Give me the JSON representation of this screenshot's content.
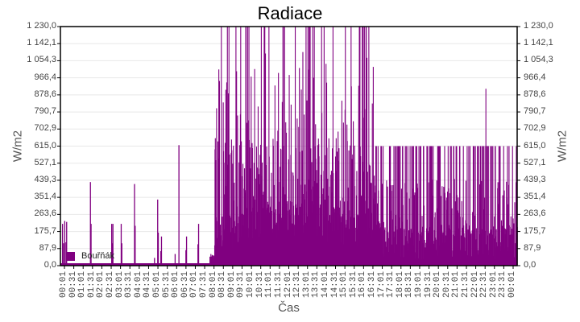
{
  "chart_data": {
    "type": "bar",
    "title": "Radiace",
    "xlabel": "Čas",
    "ylabel": "W/m2",
    "ylabel_right": "W/m2",
    "ylim": [
      0,
      1230
    ],
    "y_ticks": [
      "0,0",
      "87,9",
      "175,7",
      "263,6",
      "351,4",
      "439,3",
      "527,1",
      "615,0",
      "702,9",
      "790,7",
      "878,6",
      "966,4",
      "1 054,3",
      "1 142,1",
      "1 230,0"
    ],
    "x_ticks": [
      "00:01",
      "00:31",
      "01:01",
      "01:31",
      "02:01",
      "02:31",
      "03:01",
      "03:31",
      "04:01",
      "04:31",
      "05:01",
      "05:31",
      "06:01",
      "06:31",
      "07:01",
      "07:31",
      "08:01",
      "08:31",
      "09:01",
      "09:31",
      "10:01",
      "10:31",
      "11:01",
      "11:31",
      "12:01",
      "12:31",
      "13:01",
      "13:31",
      "14:01",
      "14:31",
      "15:01",
      "15:31",
      "16:01",
      "16:31",
      "17:01",
      "17:31",
      "18:01",
      "18:31",
      "19:01",
      "19:31",
      "20:01",
      "20:31",
      "21:01",
      "21:31",
      "22:01",
      "22:31",
      "23:01",
      "23:31",
      "00:01"
    ],
    "grid": true,
    "legend_position": "bottom-left-inside",
    "series": [
      {
        "name": "Bouřňák",
        "color": "#800080",
        "description": "Per-minute solar radiation bars; near 0 overnight with isolated spikes (~210–430), daytime 08:00–16:30 highly variable 50–1230 with many clipped peaks at 1230, afternoon/evening 16:30–24:00 frequently capped near 615 with a spike ~910 at ~22:20",
        "spikes": [
          {
            "t": "00:05",
            "v": 215
          },
          {
            "t": "00:08",
            "v": 115
          },
          {
            "t": "00:12",
            "v": 230
          },
          {
            "t": "00:16",
            "v": 120
          },
          {
            "t": "00:18",
            "v": 225
          },
          {
            "t": "01:33",
            "v": 430
          },
          {
            "t": "01:35",
            "v": 215
          },
          {
            "t": "02:40",
            "v": 215
          },
          {
            "t": "02:42",
            "v": 115
          },
          {
            "t": "02:44",
            "v": 215
          },
          {
            "t": "03:10",
            "v": 215
          },
          {
            "t": "03:12",
            "v": 115
          },
          {
            "t": "03:52",
            "v": 420
          },
          {
            "t": "03:54",
            "v": 205
          },
          {
            "t": "04:55",
            "v": 40
          },
          {
            "t": "05:05",
            "v": 340
          },
          {
            "t": "05:07",
            "v": 170
          },
          {
            "t": "05:15",
            "v": 75
          },
          {
            "t": "05:17",
            "v": 150
          },
          {
            "t": "06:00",
            "v": 60
          },
          {
            "t": "06:12",
            "v": 620
          },
          {
            "t": "06:34",
            "v": 80
          },
          {
            "t": "06:36",
            "v": 150
          },
          {
            "t": "07:12",
            "v": 110
          },
          {
            "t": "07:14",
            "v": 215
          }
        ]
      }
    ]
  }
}
